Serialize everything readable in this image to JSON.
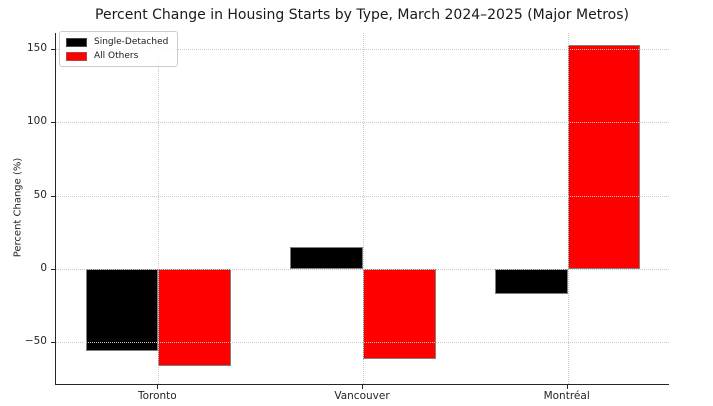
{
  "chart_data": {
    "type": "bar",
    "title": "Percent Change in Housing Starts by Type, March 2024–2025 (Major Metros)",
    "xlabel": "",
    "ylabel": "Percent Change (%)",
    "categories": [
      "Toronto",
      "Vancouver",
      "Montréal"
    ],
    "series": [
      {
        "name": "Single-Detached",
        "color": "#000000",
        "values": [
          -56,
          15,
          -17
        ]
      },
      {
        "name": "All Others",
        "color": "#ff0000",
        "values": [
          -66,
          -61,
          153
        ]
      }
    ],
    "yticks": [
      150,
      100,
      50,
      0,
      -50
    ],
    "ylim": [
      -79,
      161
    ],
    "grid": "dotted, both axes, drawn above bars",
    "legend_position": "upper left",
    "baseline": 0
  },
  "colors": {
    "background": "#ffffff",
    "bar_single_detached": "#000000",
    "bar_all_others": "#ff0000",
    "bar_edge": "#7f7f7f",
    "gridline": "#c9c9c9",
    "axis_spine": "#262626",
    "text": "#1a1a1a"
  }
}
